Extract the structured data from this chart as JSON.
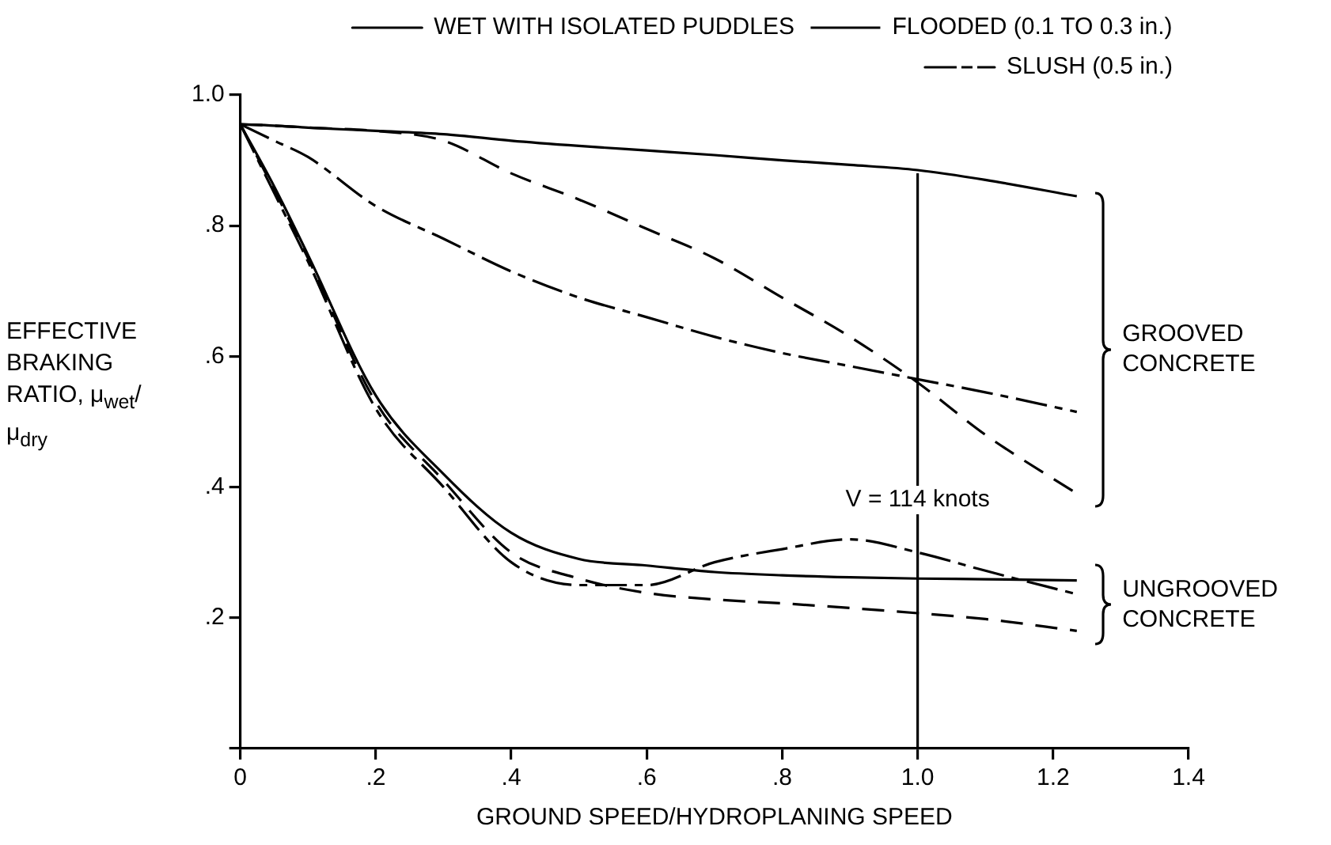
{
  "chart_data": {
    "type": "line",
    "xlabel": "GROUND SPEED/HYDROPLANING SPEED",
    "ylabel": "EFFECTIVE BRAKING RATIO, μ$_{wet}$/μ$_{dry}$",
    "x": [
      0,
      0.05,
      0.1,
      0.2,
      0.3,
      0.4,
      0.5,
      0.6,
      0.7,
      0.8,
      0.9,
      1.0,
      1.1,
      1.235
    ],
    "series": [
      {
        "name": "WET WITH ISOLATED PUDDLES",
        "color": "#000000",
        "line_style": "solid",
        "values": [
          0.955,
          0.953,
          0.95,
          0.945,
          0.94,
          0.93,
          0.922,
          0.915,
          0.908,
          0.9,
          0.893,
          0.885,
          0.87,
          0.845
        ]
      },
      {
        "name": "FLOODED (0.1 TO 0.3 in.)",
        "color": "#000000",
        "line_style": "dashed",
        "values": [
          0.955,
          0.953,
          0.95,
          0.945,
          0.93,
          0.88,
          0.84,
          0.795,
          0.75,
          0.69,
          0.63,
          0.56,
          0.48,
          0.39
        ]
      },
      {
        "name": "SLUSH (0.5 in.)",
        "color": "#000000",
        "line_style": "dashdot",
        "values": [
          0.955,
          0.93,
          0.905,
          0.83,
          0.78,
          0.73,
          0.69,
          0.66,
          0.63,
          0.605,
          0.585,
          0.565,
          0.545,
          0.515
        ]
      },
      {
        "color": "#000000",
        "line_style": "solid",
        "values": [
          0.955,
          0.86,
          0.755,
          0.54,
          0.42,
          0.33,
          0.29,
          0.28,
          0.27,
          0.265,
          0.262,
          0.26,
          0.259,
          0.257
        ]
      },
      {
        "color": "#000000",
        "line_style": "dashed",
        "values": [
          0.955,
          0.855,
          0.75,
          0.53,
          0.41,
          0.3,
          0.26,
          0.238,
          0.228,
          0.222,
          0.215,
          0.207,
          0.198,
          0.18
        ]
      },
      {
        "color": "#000000",
        "line_style": "dashdot",
        "values": [
          0.955,
          0.85,
          0.745,
          0.52,
          0.4,
          0.285,
          0.25,
          0.25,
          0.285,
          0.305,
          0.32,
          0.3,
          0.272,
          0.236
        ]
      }
    ],
    "xlim": [
      0,
      1.4
    ],
    "xticks": [
      {
        "value": 0,
        "label": "0"
      },
      {
        "value": 0.2,
        "label": ".2"
      },
      {
        "value": 0.4,
        "label": ".4"
      },
      {
        "value": 0.6,
        "label": ".6"
      },
      {
        "value": 0.8,
        "label": ".8"
      },
      {
        "value": 1.0,
        "label": "1.0"
      },
      {
        "value": 1.2,
        "label": "1.2"
      },
      {
        "value": 1.4,
        "label": "1.4"
      }
    ],
    "ylim": [
      0,
      1.0
    ],
    "yticks": [
      {
        "value": 0,
        "label": null
      },
      {
        "value": 0.2,
        "label": ".2"
      },
      {
        "value": 0.4,
        "label": ".4"
      },
      {
        "value": 0.6,
        "label": ".6"
      },
      {
        "value": 0.8,
        "label": ".8"
      },
      {
        "value": 1.0,
        "label": "1.0"
      }
    ],
    "ref_lines": [
      {
        "axis": "x",
        "value": 1.0,
        "color": "#000000"
      }
    ],
    "annotations": [
      "GROOVED CONCRETE",
      "UNGROOVED CONCRETE",
      {
        "text": "V = 114 knots",
        "x": 1.0
      }
    ],
    "grid": false,
    "legend": "top right",
    "marker": "none"
  }
}
